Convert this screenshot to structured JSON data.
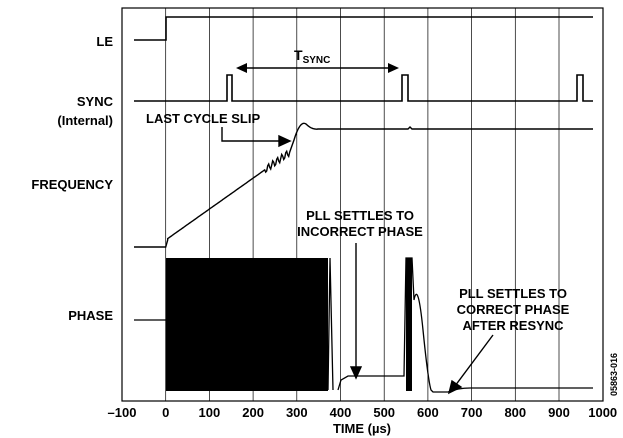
{
  "signals": {
    "le": "LE",
    "sync_line1": "SYNC",
    "sync_line2": "(Internal)",
    "frequency": "FREQUENCY",
    "phase": "PHASE"
  },
  "annotations": {
    "tsync_main": "T",
    "tsync_sub": "SYNC",
    "last_cycle_slip": "LAST CYCLE SLIP",
    "incorrect_line1": "PLL SETTLES TO",
    "incorrect_line2": "INCORRECT PHASE",
    "correct_line1": "PLL SETTLES TO",
    "correct_line2": "CORRECT PHASE",
    "correct_line3": "AFTER RESYNC"
  },
  "x_axis": {
    "label": "TIME (µs)",
    "min": -100,
    "max": 1000,
    "step": 100,
    "ticks": [
      "–100",
      "0",
      "100",
      "200",
      "300",
      "400",
      "500",
      "600",
      "700",
      "800",
      "900",
      "1000"
    ]
  },
  "figure_id": "05863-016",
  "events": {
    "le_rise_us": 0,
    "sync_pulses_us": [
      145,
      545,
      945
    ],
    "cycle_slip_end_us": 320,
    "phase_lock_incorrect_us": [
      370,
      550
    ],
    "resync_lock_us": 600
  }
}
